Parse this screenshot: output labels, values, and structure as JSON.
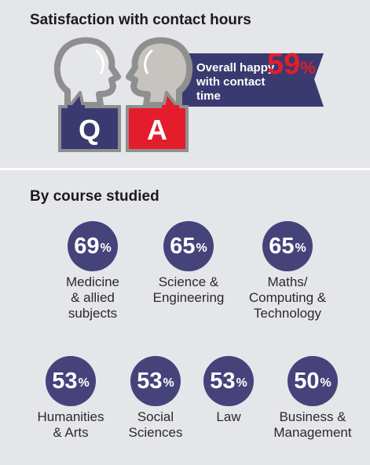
{
  "header": {
    "title": "Satisfaction with contact hours"
  },
  "hero": {
    "q_letter": "Q",
    "a_letter": "A",
    "banner_text": "Overall happy with contact time",
    "overall_value": 59,
    "overall_unit": "%"
  },
  "section": {
    "title": "By course studied"
  },
  "chart_data": {
    "type": "table",
    "title": "By course studied",
    "unit": "%",
    "overall": 59,
    "categories": [
      "Medicine & allied subjects",
      "Science & Engineering",
      "Maths/ Computing & Technology",
      "Humanities & Arts",
      "Social Sciences",
      "Law",
      "Business & Management"
    ],
    "values": [
      69,
      65,
      65,
      53,
      53,
      53,
      50
    ]
  },
  "courses": [
    {
      "value": "69",
      "unit": "%",
      "label": "Medicine\n& allied\nsubjects"
    },
    {
      "value": "65",
      "unit": "%",
      "label": "Science &\nEngineering"
    },
    {
      "value": "65",
      "unit": "%",
      "label": "Maths/\nComputing &\nTechnology"
    },
    {
      "value": "53",
      "unit": "%",
      "label": "Humanities\n& Arts"
    },
    {
      "value": "53",
      "unit": "%",
      "label": "Social\nSciences"
    },
    {
      "value": "53",
      "unit": "%",
      "label": "Law"
    },
    {
      "value": "50",
      "unit": "%",
      "label": "Business &\nManagement"
    }
  ],
  "colors": {
    "background": "#e5e6e9",
    "circle": "#45437a",
    "banner": "#3b3a70",
    "accent_red": "#e41d2c",
    "head_outline": "#8f8f8f",
    "head_fill": "#c7c3bf"
  }
}
